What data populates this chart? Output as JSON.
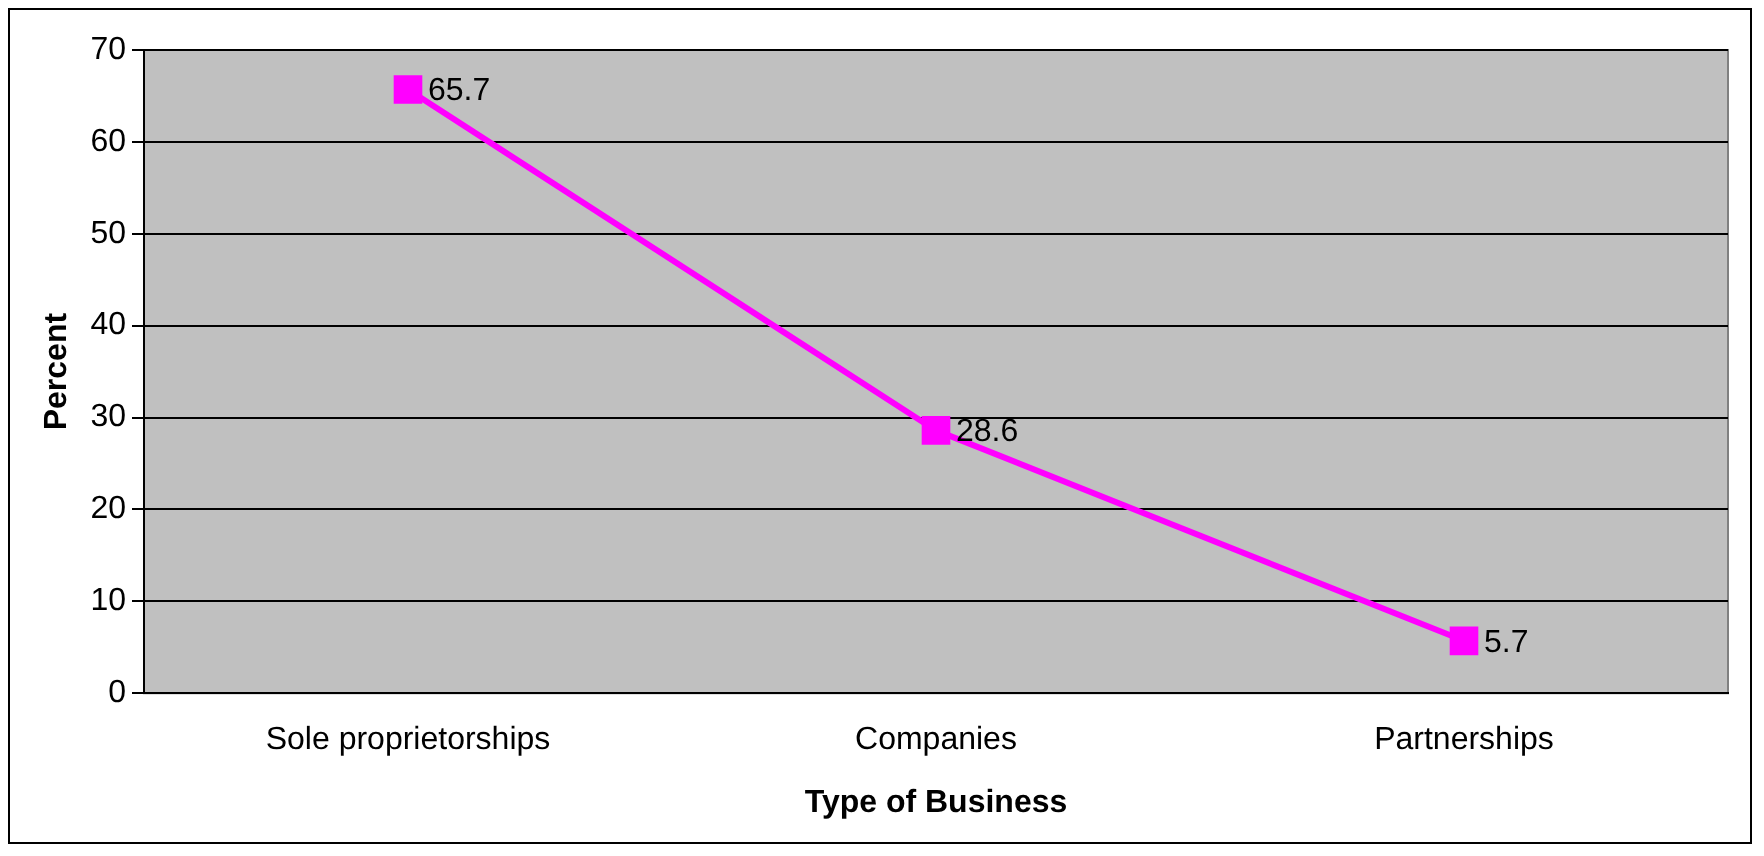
{
  "chart_data": {
    "type": "line",
    "xlabel": "Type of Business",
    "ylabel": "Percent",
    "categories": [
      "Sole proprietorships",
      "Companies",
      "Partnerships"
    ],
    "series": [
      {
        "color": "#ff00ff",
        "values": [
          65.7,
          28.6,
          5.7
        ]
      }
    ],
    "ylim": [
      0,
      70
    ],
    "yticks": [
      0,
      10,
      20,
      30,
      40,
      50,
      60,
      70
    ],
    "grid": "y",
    "legend": false,
    "marker": "square",
    "data_labels": true
  }
}
